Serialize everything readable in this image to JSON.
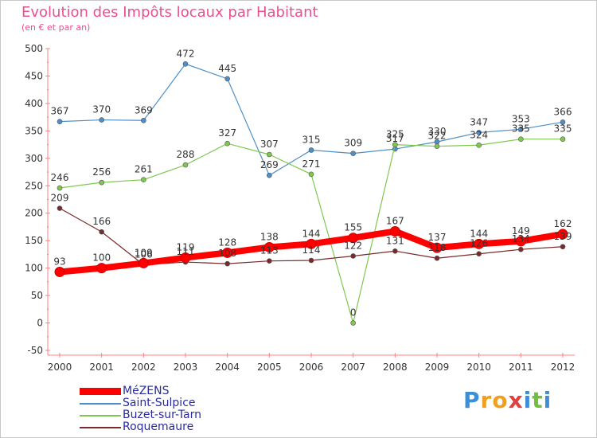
{
  "chart_data": {
    "type": "line",
    "title": "Evolution des Impôts locaux par Habitant",
    "subtitle": "(en € et par an)",
    "categories": [
      "2000",
      "2001",
      "2002",
      "2003",
      "2004",
      "2005",
      "2006",
      "2007",
      "2008",
      "2009",
      "2010",
      "2011",
      "2012"
    ],
    "y_ticks": [
      "500",
      "450",
      "400",
      "350",
      "300",
      "250",
      "200",
      "150",
      "100",
      "50",
      "0",
      "-50"
    ],
    "ylim": [
      -50,
      500
    ],
    "grid": false,
    "legend_position": "bottom-left",
    "series": [
      {
        "name": "MéZENS",
        "color": "#ff0000",
        "values": [
          93,
          100,
          109,
          119,
          128,
          138,
          144,
          155,
          167,
          137,
          144,
          149,
          162
        ],
        "labels": [
          "93",
          "100",
          "109",
          "119",
          "128",
          "138",
          "144",
          "155",
          "167",
          "137",
          "144",
          "149",
          "162"
        ]
      },
      {
        "name": "Saint-Sulpice",
        "color": "#4f8fc8",
        "values": [
          367,
          370,
          369,
          472,
          445,
          269,
          315,
          309,
          317,
          330,
          347,
          353,
          366
        ],
        "labels": [
          "367",
          "370",
          "369",
          "472",
          "445",
          "269",
          "315",
          "309",
          "317",
          "330",
          "347",
          "353",
          "366"
        ]
      },
      {
        "name": "Buzet-sur-Tarn",
        "color": "#7ec850",
        "values": [
          246,
          256,
          261,
          288,
          327,
          307,
          271,
          0,
          325,
          322,
          324,
          335,
          335
        ],
        "labels": [
          "246",
          "256",
          "261",
          "288",
          "327",
          "307",
          "271",
          "0",
          "325",
          "322",
          "324",
          "335",
          "335"
        ]
      },
      {
        "name": "Roquemaure",
        "color": "#7a2a2a",
        "values": [
          209,
          166,
          106,
          111,
          108,
          113,
          114,
          122,
          131,
          118,
          126,
          134,
          139
        ],
        "labels": [
          "209",
          "166",
          "106",
          "111",
          "108",
          "113",
          "114",
          "122",
          "131",
          "118",
          "126",
          "134",
          "139"
        ]
      }
    ]
  },
  "logo": {
    "letters": [
      "P",
      "r",
      "o",
      "x",
      "i",
      "t",
      "i"
    ],
    "colors": [
      "#3a8fd8",
      "#f0a020",
      "#f0a020",
      "#e04040",
      "#3a8fd8",
      "#70c040",
      "#3a8fd8"
    ]
  }
}
